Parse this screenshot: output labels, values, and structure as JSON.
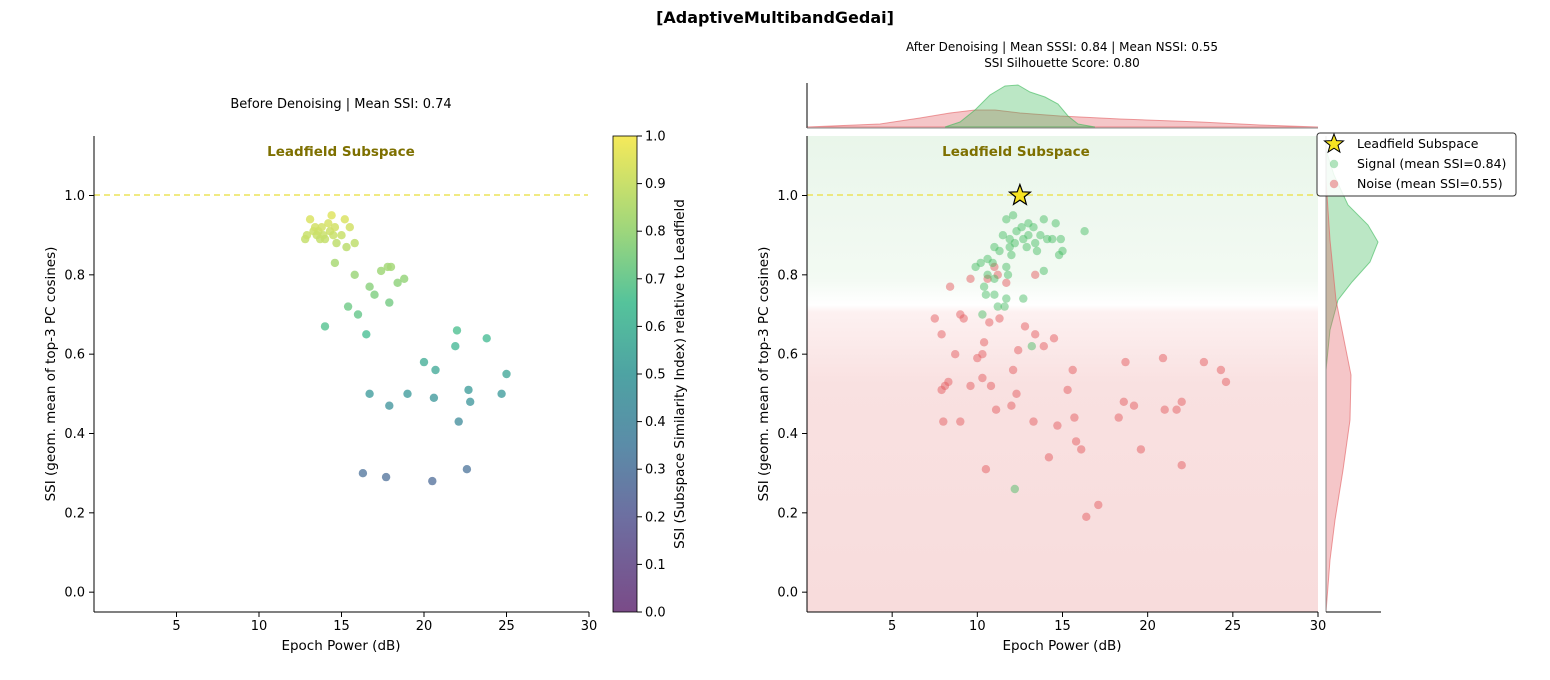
{
  "suptitle": "[AdaptiveMultibandGedai]",
  "colors": {
    "signal": "#3cb95a",
    "noise": "#e35d61",
    "reference_line": "#ece35a",
    "annotation": "#7e7000",
    "star": "#f6e321"
  },
  "chart_data": [
    {
      "type": "scatter",
      "title": "Before Denoising  |  Mean SSI: 0.74",
      "xlabel": "Epoch Power (dB)",
      "ylabel": "SSI (geom. mean of top-3 PC cosines)",
      "xlim": [
        0,
        30
      ],
      "ylim": [
        -0.05,
        1.15
      ],
      "xticks": [
        "5",
        "10",
        "15",
        "20",
        "25",
        "30"
      ],
      "xtick_values": [
        5,
        10,
        15,
        20,
        25,
        30
      ],
      "yticks": [
        "0.0",
        "0.2",
        "0.4",
        "0.6",
        "0.8",
        "1.0"
      ],
      "ytick_values": [
        0,
        0.2,
        0.4,
        0.6,
        0.8,
        1.0
      ],
      "reference_line": 1.0,
      "annotation": "Leadfield Subspace",
      "annotation_at": [
        15,
        1.11
      ],
      "colormap": "viridis",
      "colorbar": {
        "label": "SSI (Subspace Similarity Index) relative to Leadfield",
        "ticks": [
          "0.0",
          "0.1",
          "0.2",
          "0.3",
          "0.4",
          "0.5",
          "0.6",
          "0.7",
          "0.8",
          "0.9",
          "1.0"
        ],
        "tick_values": [
          0,
          0.1,
          0.2,
          0.3,
          0.4,
          0.5,
          0.6,
          0.7,
          0.8,
          0.9,
          1.0
        ]
      },
      "points": [
        [
          12.8,
          0.89
        ],
        [
          12.9,
          0.9
        ],
        [
          13.1,
          0.94
        ],
        [
          13.3,
          0.91
        ],
        [
          13.4,
          0.92
        ],
        [
          13.5,
          0.9
        ],
        [
          13.6,
          0.91
        ],
        [
          13.7,
          0.89
        ],
        [
          13.8,
          0.92
        ],
        [
          13.9,
          0.9
        ],
        [
          14.0,
          0.89
        ],
        [
          14.2,
          0.93
        ],
        [
          14.3,
          0.91
        ],
        [
          14.4,
          0.95
        ],
        [
          14.5,
          0.9
        ],
        [
          14.6,
          0.92
        ],
        [
          14.7,
          0.88
        ],
        [
          15.0,
          0.9
        ],
        [
          15.2,
          0.94
        ],
        [
          15.3,
          0.87
        ],
        [
          15.5,
          0.92
        ],
        [
          15.8,
          0.88
        ],
        [
          14.6,
          0.83
        ],
        [
          15.8,
          0.8
        ],
        [
          16.7,
          0.77
        ],
        [
          17.0,
          0.75
        ],
        [
          17.4,
          0.81
        ],
        [
          17.8,
          0.82
        ],
        [
          18.0,
          0.82
        ],
        [
          18.4,
          0.78
        ],
        [
          18.8,
          0.79
        ],
        [
          17.9,
          0.73
        ],
        [
          15.4,
          0.72
        ],
        [
          16.0,
          0.7
        ],
        [
          14.0,
          0.67
        ],
        [
          16.5,
          0.65
        ],
        [
          22.0,
          0.66
        ],
        [
          23.8,
          0.64
        ],
        [
          21.9,
          0.62
        ],
        [
          20.0,
          0.58
        ],
        [
          20.7,
          0.56
        ],
        [
          25.0,
          0.55
        ],
        [
          16.7,
          0.5
        ],
        [
          22.7,
          0.51
        ],
        [
          24.7,
          0.5
        ],
        [
          19.0,
          0.5
        ],
        [
          20.6,
          0.49
        ],
        [
          22.8,
          0.48
        ],
        [
          17.9,
          0.47
        ],
        [
          22.1,
          0.43
        ],
        [
          16.3,
          0.3
        ],
        [
          17.7,
          0.29
        ],
        [
          20.5,
          0.28
        ],
        [
          22.6,
          0.31
        ]
      ]
    },
    {
      "type": "scatter",
      "title": "After Denoising  |  Mean SSSI: 0.84  |  Mean NSSI: 0.55",
      "subtitle": "SSI Silhouette Score: 0.80",
      "xlabel": "Epoch Power (dB)",
      "ylabel": "SSI (geom. mean of top-3 PC cosines)",
      "xlim": [
        0,
        30
      ],
      "ylim": [
        -0.05,
        1.15
      ],
      "xticks": [
        "5",
        "10",
        "15",
        "20",
        "25",
        "30"
      ],
      "xtick_values": [
        5,
        10,
        15,
        20,
        25,
        30
      ],
      "yticks": [
        "0.0",
        "0.2",
        "0.4",
        "0.6",
        "0.8",
        "1.0"
      ],
      "ytick_values": [
        0,
        0.2,
        0.4,
        0.6,
        0.8,
        1.0
      ],
      "reference_line": 1.0,
      "annotation": "Leadfield Subspace",
      "annotation_at": [
        12.5,
        1.11
      ],
      "background_regions": "green above ~0.75, red below",
      "leadfield_star": [
        12.5,
        1.0
      ],
      "legend_position": "top-right",
      "legend": [
        {
          "label": "Leadfield Subspace",
          "marker": "star"
        },
        {
          "label": "Signal (mean SSI=0.84)",
          "marker": "dot-signal"
        },
        {
          "label": "Noise (mean SSI=0.55)",
          "marker": "dot-noise"
        }
      ],
      "series": [
        {
          "name": "Signal (mean SSI=0.84)",
          "points": [
            [
              11.7,
              0.94
            ],
            [
              12.1,
              0.95
            ],
            [
              12.6,
              0.92
            ],
            [
              13.0,
              0.93
            ],
            [
              13.3,
              0.92
            ],
            [
              13.9,
              0.94
            ],
            [
              14.6,
              0.93
            ],
            [
              16.3,
              0.91
            ],
            [
              11.5,
              0.9
            ],
            [
              11.9,
              0.89
            ],
            [
              12.3,
              0.91
            ],
            [
              12.7,
              0.89
            ],
            [
              13.0,
              0.9
            ],
            [
              13.4,
              0.88
            ],
            [
              13.7,
              0.9
            ],
            [
              14.1,
              0.89
            ],
            [
              14.4,
              0.89
            ],
            [
              14.9,
              0.89
            ],
            [
              15.0,
              0.86
            ],
            [
              14.8,
              0.85
            ],
            [
              12.2,
              0.88
            ],
            [
              11.9,
              0.87
            ],
            [
              11.0,
              0.87
            ],
            [
              10.6,
              0.84
            ],
            [
              11.3,
              0.86
            ],
            [
              12.0,
              0.85
            ],
            [
              12.9,
              0.87
            ],
            [
              13.5,
              0.86
            ],
            [
              9.9,
              0.82
            ],
            [
              10.2,
              0.83
            ],
            [
              10.9,
              0.83
            ],
            [
              11.7,
              0.82
            ],
            [
              10.6,
              0.8
            ],
            [
              11.0,
              0.79
            ],
            [
              11.8,
              0.8
            ],
            [
              13.9,
              0.81
            ],
            [
              10.4,
              0.77
            ],
            [
              10.5,
              0.75
            ],
            [
              11.0,
              0.75
            ],
            [
              11.7,
              0.74
            ],
            [
              11.6,
              0.72
            ],
            [
              11.2,
              0.72
            ],
            [
              12.7,
              0.74
            ],
            [
              10.3,
              0.7
            ],
            [
              13.2,
              0.62
            ],
            [
              12.2,
              0.26
            ]
          ]
        },
        {
          "name": "Noise (mean SSI=0.55)",
          "points": [
            [
              9.6,
              0.79
            ],
            [
              10.6,
              0.79
            ],
            [
              11.0,
              0.82
            ],
            [
              11.2,
              0.8
            ],
            [
              11.7,
              0.78
            ],
            [
              13.4,
              0.8
            ],
            [
              8.4,
              0.77
            ],
            [
              7.5,
              0.69
            ],
            [
              9.0,
              0.7
            ],
            [
              9.2,
              0.69
            ],
            [
              10.7,
              0.68
            ],
            [
              11.3,
              0.69
            ],
            [
              12.8,
              0.67
            ],
            [
              13.4,
              0.65
            ],
            [
              14.5,
              0.64
            ],
            [
              7.9,
              0.65
            ],
            [
              10.4,
              0.63
            ],
            [
              12.4,
              0.61
            ],
            [
              13.9,
              0.62
            ],
            [
              8.7,
              0.6
            ],
            [
              10.0,
              0.59
            ],
            [
              10.3,
              0.6
            ],
            [
              9.6,
              0.52
            ],
            [
              8.1,
              0.52
            ],
            [
              8.3,
              0.53
            ],
            [
              7.9,
              0.51
            ],
            [
              10.3,
              0.54
            ],
            [
              10.8,
              0.52
            ],
            [
              12.1,
              0.56
            ],
            [
              12.3,
              0.5
            ],
            [
              12.0,
              0.47
            ],
            [
              11.1,
              0.46
            ],
            [
              15.6,
              0.56
            ],
            [
              15.3,
              0.51
            ],
            [
              18.7,
              0.58
            ],
            [
              20.9,
              0.59
            ],
            [
              23.3,
              0.58
            ],
            [
              24.3,
              0.56
            ],
            [
              24.6,
              0.53
            ],
            [
              18.6,
              0.48
            ],
            [
              19.2,
              0.47
            ],
            [
              21.0,
              0.46
            ],
            [
              21.7,
              0.46
            ],
            [
              22.0,
              0.48
            ],
            [
              15.7,
              0.44
            ],
            [
              13.3,
              0.43
            ],
            [
              14.7,
              0.42
            ],
            [
              9.0,
              0.43
            ],
            [
              8.0,
              0.43
            ],
            [
              18.3,
              0.44
            ],
            [
              15.8,
              0.38
            ],
            [
              16.1,
              0.36
            ],
            [
              19.6,
              0.36
            ],
            [
              22.0,
              0.32
            ],
            [
              14.2,
              0.34
            ],
            [
              10.5,
              0.31
            ],
            [
              17.1,
              0.22
            ],
            [
              16.4,
              0.19
            ]
          ]
        }
      ]
    }
  ]
}
